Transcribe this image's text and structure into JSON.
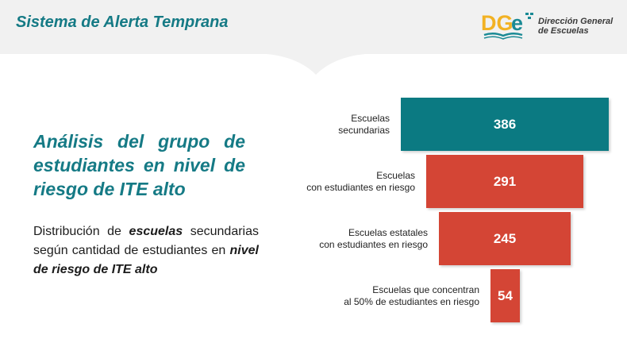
{
  "header": {
    "title": "Sistema de Alerta Temprana",
    "logo": {
      "mark": "DGE",
      "name_line1": "Dirección General",
      "name_line2": "de Escuelas"
    }
  },
  "section": {
    "title": "Análisis del grupo de estudiantes en nivel de riesgo de ITE alto",
    "description": {
      "part1": "Distribución de ",
      "emphasis1": "escuelas",
      "part2": " secundarias según cantidad de estudiantes en ",
      "emphasis2": "nivel de riesgo de ITE alto"
    }
  },
  "colors": {
    "teal": "#0b7a82",
    "red": "#d44535",
    "title_teal": "#157a85"
  },
  "chart_data": {
    "type": "bar",
    "categories": [
      "Escuelas secundarias",
      "Escuelas con estudiantes en riesgo",
      "Escuelas estatales con estudiantes en riesgo",
      "Escuelas que concentran al 50% de estudiantes en riesgo"
    ],
    "values": [
      386,
      291,
      245,
      54
    ],
    "labels": [
      [
        "Escuelas",
        "secundarias"
      ],
      [
        "Escuelas",
        "con estudiantes en riesgo"
      ],
      [
        "Escuelas estatales",
        "con estudiantes en riesgo"
      ],
      [
        "Escuelas que concentran",
        "al 50% de estudiantes en riesgo"
      ]
    ],
    "bar_colors": [
      "#0b7a82",
      "#d44535",
      "#d44535",
      "#d44535"
    ],
    "orientation": "funnel"
  }
}
